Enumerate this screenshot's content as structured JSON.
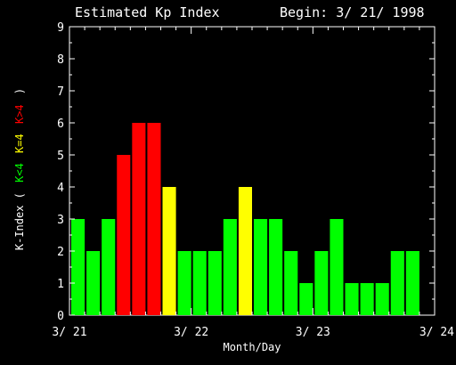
{
  "chart_data": {
    "type": "bar",
    "title": "Estimated Kp Index",
    "subtitle": "Begin: 3/ 21/ 1998",
    "xlabel": "Month/Day",
    "ylabel": {
      "prefix": "K-Index (",
      "parts": [
        {
          "text": "K<4",
          "color": "#00ff00"
        },
        {
          "text": "K=4",
          "color": "#ffff00"
        },
        {
          "text": "K>4",
          "color": "#ff0000"
        }
      ],
      "suffix": ")"
    },
    "ylim": [
      0,
      9
    ],
    "yticks": [
      "0",
      "1",
      "2",
      "3",
      "4",
      "5",
      "6",
      "7",
      "8",
      "9"
    ],
    "xticks": [
      "3/ 21",
      "3/ 22",
      "3/ 23",
      "3/ 24"
    ],
    "bars_per_day": 8,
    "days": 3,
    "values": [
      3,
      2,
      3,
      5,
      6,
      6,
      4,
      2,
      2,
      2,
      3,
      4,
      3,
      3,
      2,
      1,
      2,
      3,
      1,
      1,
      1,
      2,
      2
    ],
    "colors": {
      "low": "#00ff00",
      "moderate": "#ffff00",
      "high": "#ff0000"
    },
    "grid": false
  }
}
